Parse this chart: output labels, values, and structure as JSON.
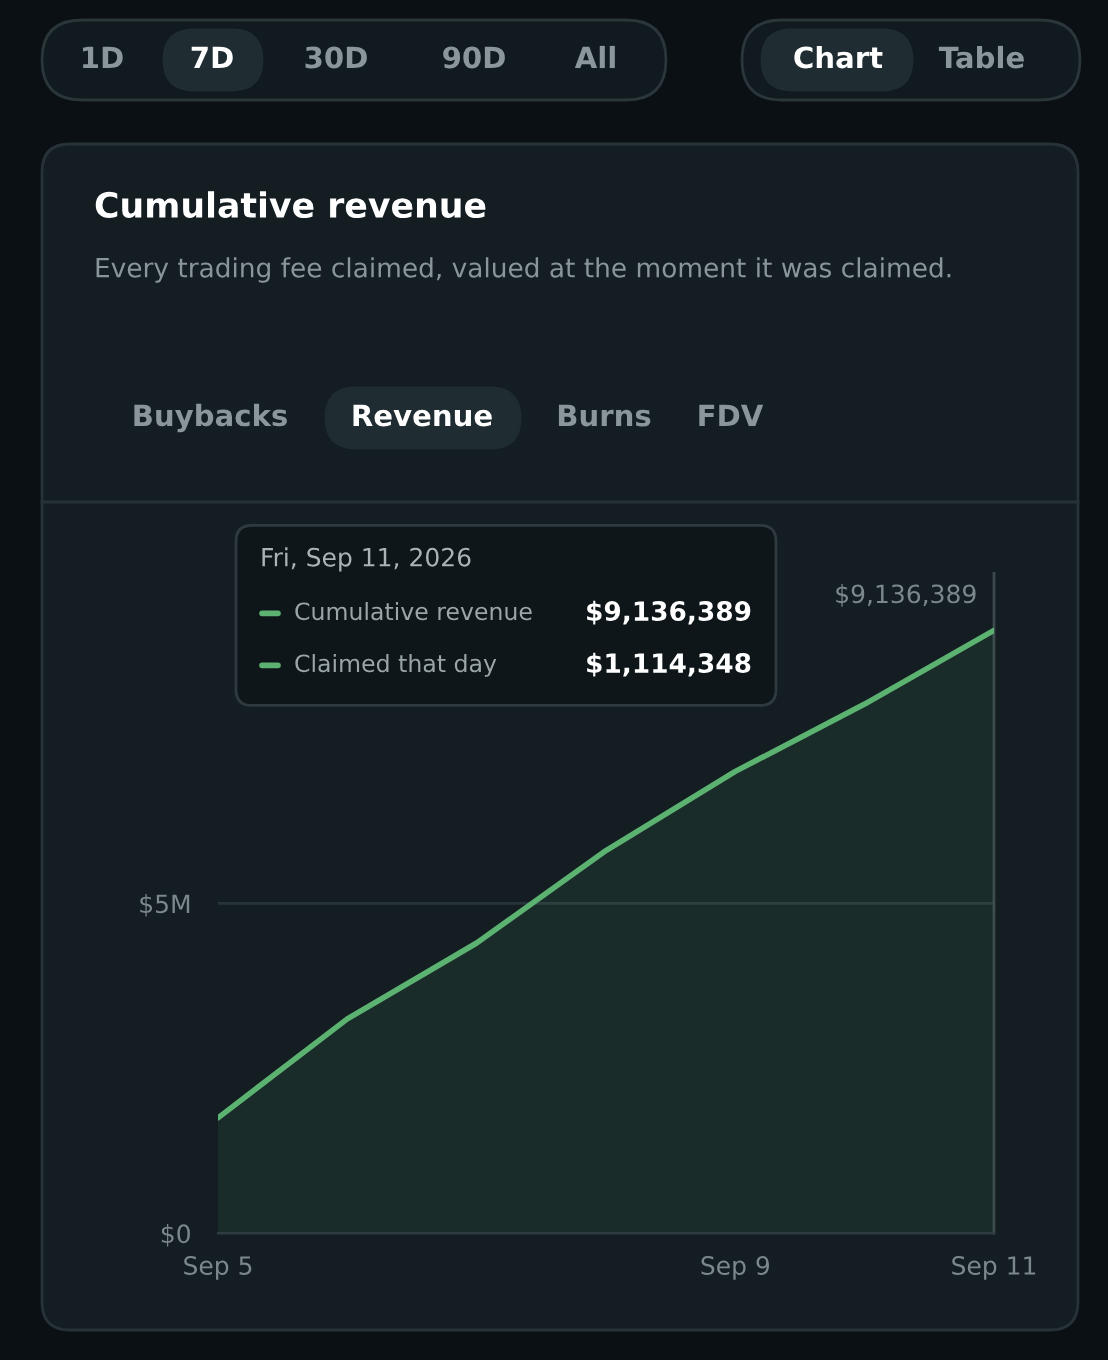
{
  "chart_data": {
    "type": "area",
    "title": "Cumulative revenue",
    "subtitle": "Every trading fee claimed, valued at the moment it was claimed.",
    "x": [
      "2026-09-05",
      "2026-09-06",
      "2026-09-07",
      "2026-09-08",
      "2026-09-09",
      "2026-09-10",
      "2026-09-11"
    ],
    "series": [
      {
        "name": "Cumulative revenue",
        "color": "#5cb270",
        "values": [
          1750000,
          3250000,
          4400000,
          5800000,
          7000000,
          8020000,
          9136389
        ],
        "value_labels": [
          null,
          null,
          null,
          null,
          null,
          null,
          "$9,136,389"
        ]
      }
    ],
    "xlim": [
      "2026-09-05",
      "2026-09-11"
    ],
    "xticks": [
      {
        "value": "2026-09-05",
        "label": "Sep 5"
      },
      {
        "value": "2026-09-09",
        "label": "Sep 9"
      },
      {
        "value": "2026-09-11",
        "label": "Sep 11"
      }
    ],
    "ylim": [
      0,
      10000000
    ],
    "yticks": [
      {
        "value": 0,
        "label": "$0"
      },
      {
        "value": 5000000,
        "label": "$5M"
      }
    ],
    "grid": "y",
    "legend": "top left",
    "ref_lines": [
      {
        "axis": "x",
        "value": "2026-09-11",
        "color": "#3b484e"
      }
    ],
    "annotations": [
      "Fri, Sep 11, 2026",
      "$9,136,389",
      "Claimed that day",
      "$1,114,348",
      "1D",
      "7D",
      "30D",
      "90D",
      "All",
      "Chart",
      "Table",
      "Buybacks",
      "Revenue",
      "Burns",
      "FDV"
    ]
  }
}
